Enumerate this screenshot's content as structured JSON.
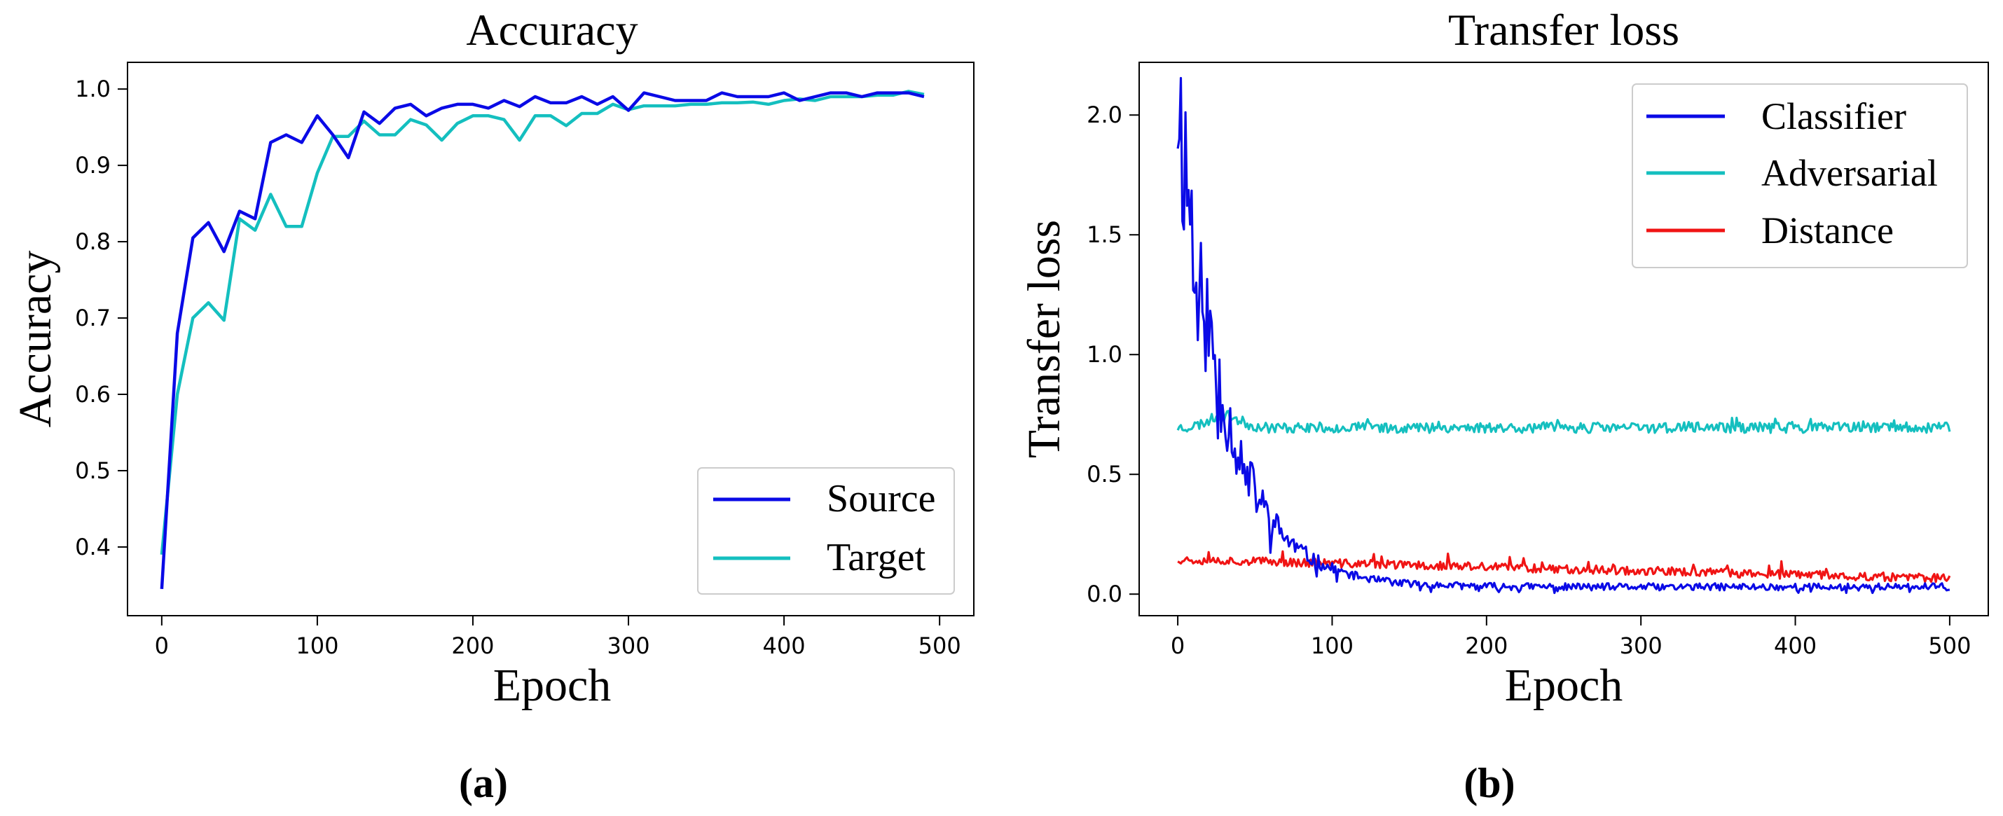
{
  "figure": {
    "panel_labels": [
      "(a)",
      "(b)"
    ]
  },
  "colors": {
    "source": "#0a0ae6",
    "target": "#14bfbf",
    "classifier": "#0a0ae6",
    "adversarial": "#14bfbf",
    "distance": "#f01414",
    "axis": "#000000",
    "legend_border": "#cccccc"
  },
  "chart_data": [
    {
      "type": "line",
      "title": "Accuracy",
      "xlabel": "Epoch",
      "ylabel": "Accuracy",
      "xlim": [
        -22,
        522
      ],
      "ylim": [
        0.31,
        1.035
      ],
      "xticks": [
        0,
        100,
        200,
        300,
        400,
        500
      ],
      "yticks": [
        0.4,
        0.5,
        0.6,
        0.7,
        0.8,
        0.9,
        1.0
      ],
      "xtick_labels": [
        "0",
        "100",
        "200",
        "300",
        "400",
        "500"
      ],
      "ytick_labels": [
        "0.4",
        "0.5",
        "0.6",
        "0.7",
        "0.8",
        "0.9",
        "1.0"
      ],
      "legend_position": "lower-right",
      "grid": false,
      "x": [
        0,
        10,
        20,
        30,
        40,
        50,
        60,
        70,
        80,
        90,
        100,
        110,
        120,
        130,
        140,
        150,
        160,
        170,
        180,
        190,
        200,
        210,
        220,
        230,
        240,
        250,
        260,
        270,
        280,
        290,
        300,
        310,
        320,
        330,
        340,
        350,
        360,
        370,
        380,
        390,
        400,
        410,
        420,
        430,
        440,
        450,
        460,
        470,
        480,
        490
      ],
      "series": [
        {
          "name": "Source",
          "color": "#0a0ae6",
          "values": [
            0.345,
            0.68,
            0.805,
            0.825,
            0.787,
            0.84,
            0.83,
            0.93,
            0.94,
            0.93,
            0.965,
            0.94,
            0.91,
            0.97,
            0.955,
            0.975,
            0.98,
            0.965,
            0.975,
            0.98,
            0.98,
            0.975,
            0.985,
            0.977,
            0.99,
            0.982,
            0.982,
            0.99,
            0.98,
            0.99,
            0.972,
            0.995,
            0.99,
            0.985,
            0.985,
            0.985,
            0.995,
            0.99,
            0.99,
            0.99,
            0.995,
            0.985,
            0.99,
            0.995,
            0.995,
            0.99,
            0.995,
            0.995,
            0.995,
            0.99
          ]
        },
        {
          "name": "Target",
          "color": "#14bfbf",
          "values": [
            0.39,
            0.6,
            0.7,
            0.72,
            0.697,
            0.83,
            0.815,
            0.862,
            0.82,
            0.82,
            0.89,
            0.938,
            0.938,
            0.958,
            0.94,
            0.94,
            0.96,
            0.953,
            0.933,
            0.955,
            0.965,
            0.965,
            0.96,
            0.933,
            0.965,
            0.965,
            0.952,
            0.968,
            0.968,
            0.98,
            0.973,
            0.978,
            0.978,
            0.978,
            0.98,
            0.98,
            0.982,
            0.982,
            0.983,
            0.98,
            0.985,
            0.987,
            0.985,
            0.99,
            0.99,
            0.99,
            0.992,
            0.992,
            0.997,
            0.993
          ]
        }
      ]
    },
    {
      "type": "line",
      "title": "Transfer loss",
      "xlabel": "Epoch",
      "ylabel": "Transfer loss",
      "xlim": [
        -25,
        525
      ],
      "ylim": [
        -0.09,
        2.22
      ],
      "xticks": [
        0,
        100,
        200,
        300,
        400,
        500
      ],
      "yticks": [
        0.0,
        0.5,
        1.0,
        1.5,
        2.0
      ],
      "xtick_labels": [
        "0",
        "100",
        "200",
        "300",
        "400",
        "500"
      ],
      "ytick_labels": [
        "0.0",
        "0.5",
        "1.0",
        "1.5",
        "2.0"
      ],
      "legend_position": "upper-right",
      "grid": false,
      "x_range": [
        0,
        500
      ],
      "series": [
        {
          "name": "Classifier",
          "color": "#0a0ae6",
          "trend": {
            "start": 2.1,
            "decay": 0.033,
            "floor": 0.03,
            "noise_frac": 0.22,
            "noise_min": 0.015,
            "seed": 11
          }
        },
        {
          "name": "Adversarial",
          "color": "#14bfbf",
          "trend": {
            "base": 0.695,
            "bump": 0.05,
            "bump_center": 30,
            "bump_width": 14,
            "noise": 0.022,
            "seed": 23
          }
        },
        {
          "name": "Distance",
          "color": "#f01414",
          "trend": {
            "start": 0.145,
            "end": 0.065,
            "noise": 0.018,
            "seed": 37
          }
        }
      ]
    }
  ]
}
